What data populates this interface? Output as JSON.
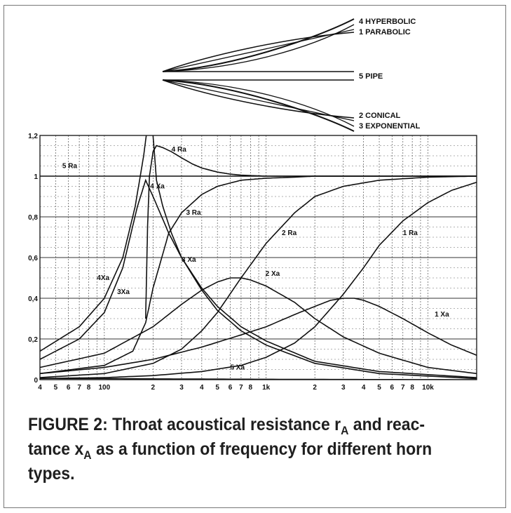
{
  "horn_profiles": [
    {
      "label": "4 HYPERBOLIC"
    },
    {
      "label": "1 PARABOLIC"
    },
    {
      "label": "5 PIPE"
    },
    {
      "label": "2 CONICAL"
    },
    {
      "label": "3 EXPONENTIAL"
    }
  ],
  "chart_data": {
    "type": "line",
    "title": "",
    "xlabel": "",
    "ylabel": "",
    "x_scale": "log",
    "xlim": [
      40,
      20000
    ],
    "ylim": [
      0,
      1.2
    ],
    "grid": true,
    "y_ticks": [
      {
        "value": 0,
        "label": "0"
      },
      {
        "value": 0.2,
        "label": "0,2"
      },
      {
        "value": 0.4,
        "label": "0,4"
      },
      {
        "value": 0.6,
        "label": "0,6"
      },
      {
        "value": 0.8,
        "label": "0,8"
      },
      {
        "value": 1.0,
        "label": "1"
      },
      {
        "value": 1.2,
        "label": "1,2"
      }
    ],
    "x_ticks": [
      {
        "value": 40,
        "label": "4"
      },
      {
        "value": 50,
        "label": "5"
      },
      {
        "value": 60,
        "label": "6"
      },
      {
        "value": 70,
        "label": "7"
      },
      {
        "value": 80,
        "label": "8"
      },
      {
        "value": 100,
        "label": "100"
      },
      {
        "value": 200,
        "label": "2"
      },
      {
        "value": 300,
        "label": "3"
      },
      {
        "value": 400,
        "label": "4"
      },
      {
        "value": 500,
        "label": "5"
      },
      {
        "value": 600,
        "label": "6"
      },
      {
        "value": 700,
        "label": "7"
      },
      {
        "value": 800,
        "label": "8"
      },
      {
        "value": 1000,
        "label": "1k"
      },
      {
        "value": 2000,
        "label": "2"
      },
      {
        "value": 3000,
        "label": "3"
      },
      {
        "value": 4000,
        "label": "4"
      },
      {
        "value": 5000,
        "label": "5"
      },
      {
        "value": 6000,
        "label": "6"
      },
      {
        "value": 7000,
        "label": "7"
      },
      {
        "value": 8000,
        "label": "8"
      },
      {
        "value": 10000,
        "label": "10k"
      }
    ],
    "series": [
      {
        "name": "1 Ra",
        "x": [
          40,
          100,
          200,
          400,
          700,
          1000,
          1500,
          2000,
          3000,
          4000,
          5000,
          7000,
          10000,
          14000,
          20000
        ],
        "y": [
          0.006,
          0.01,
          0.02,
          0.04,
          0.07,
          0.11,
          0.18,
          0.26,
          0.42,
          0.55,
          0.66,
          0.78,
          0.87,
          0.93,
          0.97
        ]
      },
      {
        "name": "2 Ra",
        "x": [
          40,
          100,
          200,
          300,
          400,
          500,
          700,
          1000,
          1500,
          2000,
          3000,
          5000,
          10000,
          20000
        ],
        "y": [
          0.01,
          0.03,
          0.08,
          0.15,
          0.24,
          0.33,
          0.5,
          0.67,
          0.82,
          0.9,
          0.95,
          0.98,
          0.995,
          1.0
        ]
      },
      {
        "name": "3 Ra",
        "x": [
          40,
          100,
          150,
          180,
          200,
          250,
          300,
          400,
          500,
          700,
          1000,
          1500,
          2000,
          3000,
          20000
        ],
        "y": [
          0.03,
          0.07,
          0.14,
          0.28,
          0.45,
          0.72,
          0.82,
          0.91,
          0.95,
          0.98,
          0.99,
          0.995,
          1.0,
          1.0,
          1.0
        ]
      },
      {
        "name": "4 Ra",
        "x": [
          180,
          185,
          190,
          200,
          210,
          230,
          260,
          300,
          350,
          400,
          500,
          600,
          700,
          1000,
          2000,
          20000
        ],
        "y": [
          0.3,
          0.75,
          1.0,
          1.12,
          1.15,
          1.14,
          1.12,
          1.09,
          1.06,
          1.04,
          1.02,
          1.01,
          1.005,
          1.0,
          1.0,
          1.0
        ]
      },
      {
        "name": "5 Ra",
        "x": [
          40,
          20000
        ],
        "y": [
          1.0,
          1.0
        ]
      },
      {
        "name": "1 Xa",
        "x": [
          40,
          100,
          200,
          400,
          700,
          1000,
          1500,
          2000,
          2500,
          3000,
          3500,
          4000,
          5000,
          7000,
          10000,
          14000,
          20000
        ],
        "y": [
          0.03,
          0.06,
          0.1,
          0.16,
          0.22,
          0.26,
          0.32,
          0.36,
          0.39,
          0.4,
          0.4,
          0.39,
          0.36,
          0.3,
          0.23,
          0.17,
          0.12
        ]
      },
      {
        "name": "2 Xa",
        "x": [
          40,
          100,
          200,
          300,
          400,
          500,
          600,
          700,
          800,
          1000,
          1500,
          2000,
          3000,
          5000,
          10000,
          20000
        ],
        "y": [
          0.06,
          0.13,
          0.26,
          0.37,
          0.44,
          0.48,
          0.5,
          0.5,
          0.49,
          0.46,
          0.38,
          0.3,
          0.21,
          0.13,
          0.06,
          0.03
        ]
      },
      {
        "name": "3 Xa",
        "x": [
          40,
          70,
          100,
          130,
          160,
          180,
          200,
          250,
          300,
          400,
          500,
          700,
          1000,
          2000,
          5000,
          20000
        ],
        "y": [
          0.1,
          0.2,
          0.33,
          0.55,
          0.85,
          0.98,
          0.9,
          0.72,
          0.6,
          0.45,
          0.36,
          0.26,
          0.19,
          0.09,
          0.04,
          0.01
        ]
      },
      {
        "name": "4 Xa",
        "x": [
          40,
          70,
          100,
          130,
          155,
          175,
          185,
          193,
          200,
          210,
          230,
          260,
          300,
          400,
          500,
          700,
          1000,
          2000,
          5000,
          20000
        ],
        "y": [
          0.14,
          0.26,
          0.4,
          0.6,
          0.85,
          1.1,
          1.25,
          1.45,
          1.2,
          0.98,
          0.85,
          0.72,
          0.6,
          0.44,
          0.34,
          0.24,
          0.17,
          0.08,
          0.03,
          0.005
        ]
      },
      {
        "name": "5 Xa",
        "x": [
          40,
          100,
          200,
          400,
          1000,
          3000,
          20000
        ],
        "y": [
          0.006,
          0.005,
          0.004,
          0.003,
          0.002,
          0.001,
          0.0
        ]
      }
    ],
    "annotations": [
      {
        "label": "4 Ra",
        "x": 260,
        "y": 1.12
      },
      {
        "label": "5 Ra",
        "x": 55,
        "y": 1.04
      },
      {
        "label": "4 Xa",
        "x": 192,
        "y": 0.94
      },
      {
        "label": "3 Ra",
        "x": 320,
        "y": 0.81
      },
      {
        "label": "2 Ra",
        "x": 1250,
        "y": 0.71
      },
      {
        "label": "1 Ra",
        "x": 7000,
        "y": 0.71
      },
      {
        "label": "3 Xa",
        "x": 300,
        "y": 0.58
      },
      {
        "label": "2 Xa",
        "x": 990,
        "y": 0.51
      },
      {
        "label": "4Xa",
        "x": 90,
        "y": 0.49
      },
      {
        "label": "3Xa",
        "x": 120,
        "y": 0.42
      },
      {
        "label": "1 Xa",
        "x": 11000,
        "y": 0.31
      },
      {
        "label": "5 Xa",
        "x": 600,
        "y": 0.05
      }
    ]
  },
  "caption": {
    "part1": "FIGURE 2: Throat acoustical resistance r",
    "sub1": "A",
    "part2": " and reac-tance x",
    "sub2": "A",
    "part3": " as a function of frequency for different horn types."
  }
}
